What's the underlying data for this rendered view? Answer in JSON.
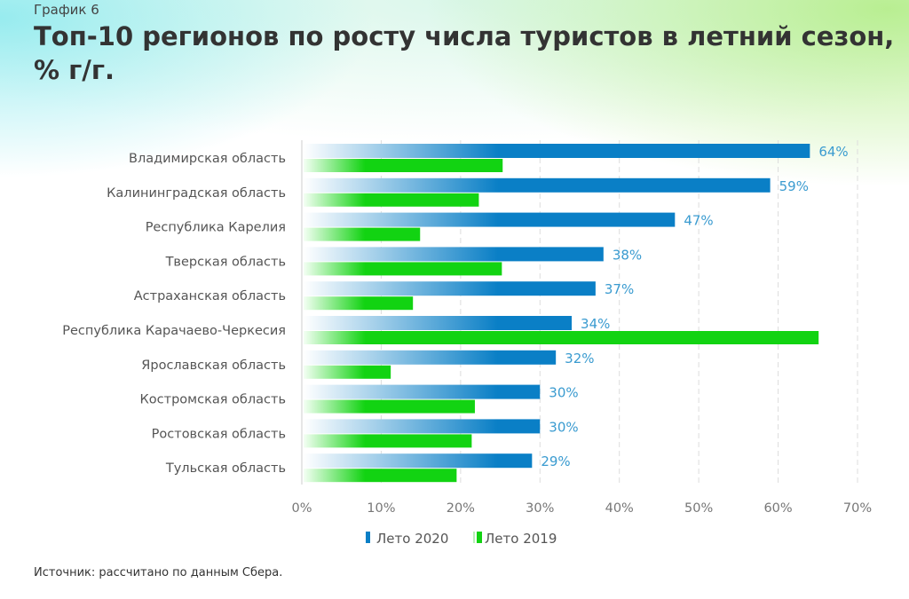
{
  "header": {
    "supertitle": "График 6",
    "title": "Топ-10 регионов по росту числа туристов в летний сезон, % г/г."
  },
  "footer": {
    "source": "Источник: рассчитано по данным Сбера."
  },
  "chart_data": {
    "type": "bar",
    "orientation": "horizontal",
    "categories": [
      "Владимирская область",
      "Калининградская область",
      "Республика Карелия",
      "Тверская область",
      "Астраханская область",
      "Республика Карачаево-Черкесия",
      "Ярославская область",
      "Костромская область",
      "Ростовская область",
      "Тульская область"
    ],
    "series": [
      {
        "name": "Лето 2020",
        "color": "#0a7fc6",
        "values": [
          64,
          59,
          47,
          38,
          37,
          34,
          32,
          30,
          30,
          29
        ],
        "labels": [
          "64%",
          "59%",
          "47%",
          "38%",
          "37%",
          "34%",
          "32%",
          "30%",
          "30%",
          "29%"
        ]
      },
      {
        "name": "Лето 2019",
        "color": "#12d312",
        "values": [
          25.3,
          22.3,
          14.9,
          25.2,
          14.0,
          65.1,
          11.2,
          21.8,
          21.4,
          19.5
        ]
      }
    ],
    "xlim": [
      0,
      70
    ],
    "xticks": [
      "0%",
      "10%",
      "20%",
      "30%",
      "40%",
      "50%",
      "60%",
      "70%"
    ],
    "grid": "vertical dashed",
    "legend": "bottom-center",
    "label_color": "#3a9bd0"
  }
}
